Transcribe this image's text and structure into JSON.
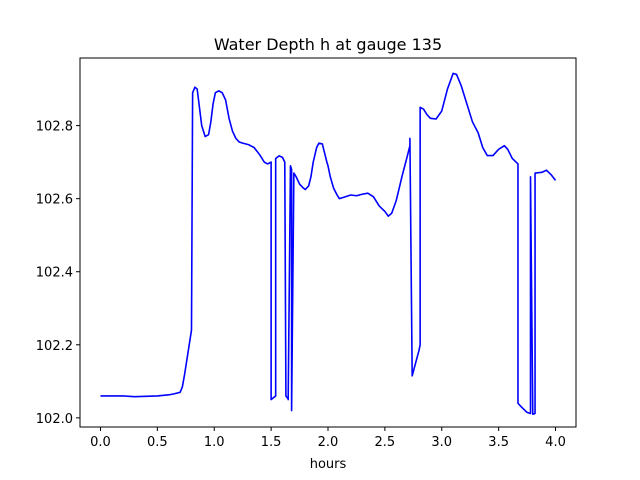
{
  "chart_data": {
    "type": "line",
    "title": "Water Depth h at gauge 135",
    "xlabel": "hours",
    "ylabel": "",
    "xlim": [
      -0.18,
      4.18
    ],
    "ylim": [
      101.975,
      102.985
    ],
    "xticks": [
      0.0,
      0.5,
      1.0,
      1.5,
      2.0,
      2.5,
      3.0,
      3.5,
      4.0
    ],
    "xtick_labels": [
      "0.0",
      "0.5",
      "1.0",
      "1.5",
      "2.0",
      "2.5",
      "3.0",
      "3.5",
      "4.0"
    ],
    "yticks": [
      102.0,
      102.2,
      102.4,
      102.6,
      102.8
    ],
    "ytick_labels": [
      "102.0",
      "102.2",
      "102.4",
      "102.6",
      "102.8"
    ],
    "grid": false,
    "line_color": "#0000ff",
    "series": [
      {
        "x": [
          0.0,
          0.2,
          0.3,
          0.5,
          0.6,
          0.65,
          0.7,
          0.72,
          0.74,
          0.76,
          0.78,
          0.8,
          0.81,
          0.81,
          0.83,
          0.85,
          0.87,
          0.89,
          0.92,
          0.95,
          0.97,
          0.99,
          1.01,
          1.04,
          1.07,
          1.1,
          1.13,
          1.16,
          1.19,
          1.22,
          1.25,
          1.3,
          1.35,
          1.4,
          1.44,
          1.47,
          1.5,
          1.5,
          1.52,
          1.52,
          1.54,
          1.54,
          1.57,
          1.6,
          1.62,
          1.63,
          1.63,
          1.65,
          1.65,
          1.67,
          1.67,
          1.68,
          1.68,
          1.7,
          1.72,
          1.75,
          1.78,
          1.8,
          1.83,
          1.85,
          1.87,
          1.9,
          1.92,
          1.95,
          1.97,
          1.99,
          2.0,
          2.02,
          2.05,
          2.08,
          2.1,
          2.15,
          2.2,
          2.25,
          2.3,
          2.35,
          2.4,
          2.45,
          2.5,
          2.53,
          2.56,
          2.6,
          2.65,
          2.7,
          2.72,
          2.72,
          2.74,
          2.77,
          2.8,
          2.81,
          2.81,
          2.84,
          2.87,
          2.9,
          2.95,
          3.0,
          3.05,
          3.1,
          3.13,
          3.17,
          3.22,
          3.27,
          3.32,
          3.36,
          3.4,
          3.45,
          3.5,
          3.55,
          3.58,
          3.62,
          3.67,
          3.67,
          3.7,
          3.75,
          3.78,
          3.78,
          3.8,
          3.8,
          3.82,
          3.82,
          3.88,
          3.92,
          3.96,
          4.0
        ],
        "y": [
          102.06,
          102.06,
          102.058,
          102.06,
          102.063,
          102.066,
          102.07,
          102.085,
          102.12,
          102.16,
          102.2,
          102.24,
          102.89,
          102.89,
          102.905,
          102.9,
          102.85,
          102.8,
          102.77,
          102.775,
          102.81,
          102.86,
          102.89,
          102.895,
          102.89,
          102.87,
          102.82,
          102.785,
          102.765,
          102.755,
          102.752,
          102.748,
          102.74,
          102.72,
          102.7,
          102.695,
          102.7,
          102.05,
          102.055,
          102.055,
          102.06,
          102.71,
          102.717,
          102.713,
          102.7,
          102.06,
          102.06,
          102.052,
          102.05,
          102.69,
          102.69,
          102.68,
          102.02,
          102.67,
          102.66,
          102.64,
          102.63,
          102.625,
          102.635,
          102.66,
          102.7,
          102.74,
          102.752,
          102.75,
          102.725,
          102.7,
          102.69,
          102.66,
          102.628,
          102.61,
          102.6,
          102.605,
          102.61,
          102.608,
          102.612,
          102.615,
          102.605,
          102.58,
          102.565,
          102.552,
          102.56,
          102.595,
          102.66,
          102.72,
          102.745,
          102.765,
          102.115,
          102.15,
          102.185,
          102.2,
          102.85,
          102.845,
          102.83,
          102.82,
          102.818,
          102.84,
          102.9,
          102.943,
          102.94,
          102.91,
          102.86,
          102.81,
          102.78,
          102.74,
          102.718,
          102.718,
          102.735,
          102.745,
          102.735,
          102.71,
          102.695,
          102.04,
          102.03,
          102.015,
          102.012,
          102.66,
          102.01,
          102.01,
          102.012,
          102.67,
          102.672,
          102.678,
          102.666,
          102.65
        ]
      }
    ]
  }
}
